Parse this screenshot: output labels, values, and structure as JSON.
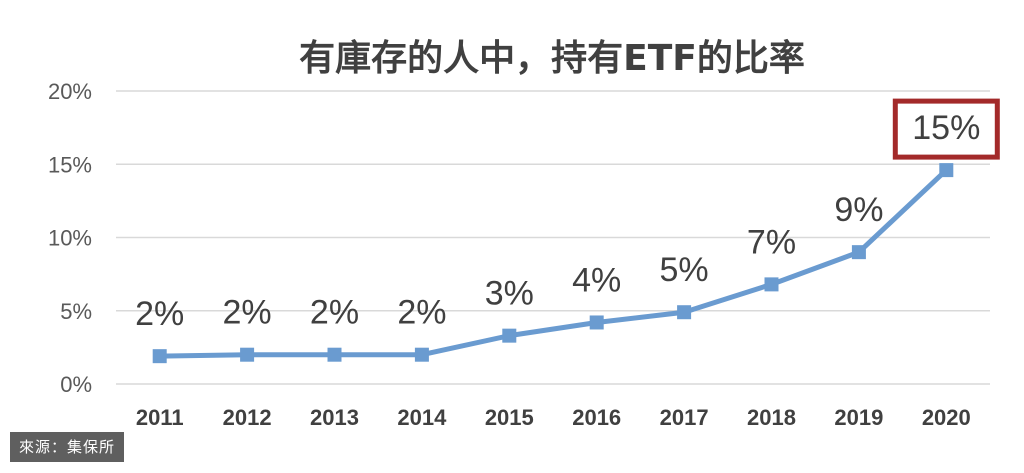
{
  "chart_data": {
    "type": "line",
    "title": "有庫存的人中，持有ETF的比率",
    "categories": [
      "2011",
      "2012",
      "2013",
      "2014",
      "2015",
      "2016",
      "2017",
      "2018",
      "2019",
      "2020"
    ],
    "series": [
      {
        "values": [
          1.9,
          2.0,
          2.0,
          2.0,
          3.3,
          4.2,
          4.9,
          6.8,
          9.0,
          14.6
        ],
        "data_labels": [
          "2%",
          "2%",
          "2%",
          "2%",
          "3%",
          "4%",
          "5%",
          "7%",
          "9%",
          "15%"
        ],
        "color": "#6a9bd0"
      }
    ],
    "yticks": [
      "0%",
      "5%",
      "10%",
      "15%",
      "20%"
    ],
    "ylim": [
      0,
      20
    ],
    "grid": true,
    "highlight_index": 9,
    "highlight_color": "#a32a2a"
  },
  "source_label": "來源：集保所"
}
